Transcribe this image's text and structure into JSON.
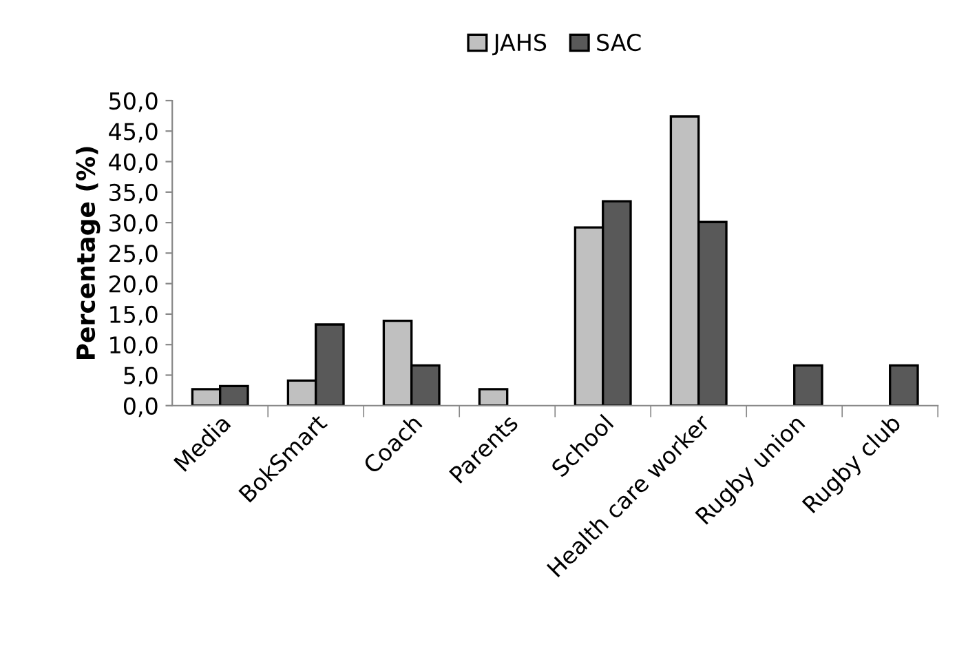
{
  "chart_data": {
    "type": "bar",
    "ylabel": "Percentage (%)",
    "categories": [
      "Media",
      "BokSmart",
      "Coach",
      "Parents",
      "School",
      "Health care worker",
      "Rugby union",
      "Rugby club"
    ],
    "series": [
      {
        "name": "JAHS",
        "color": "#c0c0c0",
        "values": [
          2.7,
          4.1,
          13.9,
          2.7,
          29.2,
          47.4,
          null,
          null
        ]
      },
      {
        "name": "SAC",
        "color": "#595959",
        "values": [
          3.2,
          13.3,
          6.6,
          null,
          33.5,
          30.1,
          6.6,
          6.6
        ]
      }
    ],
    "ylim": [
      0,
      50
    ],
    "yticks": [
      {
        "value": 0,
        "label": "0,0"
      },
      {
        "value": 5,
        "label": "5,0"
      },
      {
        "value": 10,
        "label": "10,0"
      },
      {
        "value": 15,
        "label": "15,0"
      },
      {
        "value": 20,
        "label": "20,0"
      },
      {
        "value": 25,
        "label": "25,0"
      },
      {
        "value": 30,
        "label": "30,0"
      },
      {
        "value": 35,
        "label": "35,0"
      },
      {
        "value": 40,
        "label": "40,0"
      },
      {
        "value": 45,
        "label": "45,0"
      },
      {
        "value": 50,
        "label": "50,0"
      }
    ],
    "grid": false,
    "legend": "top"
  }
}
